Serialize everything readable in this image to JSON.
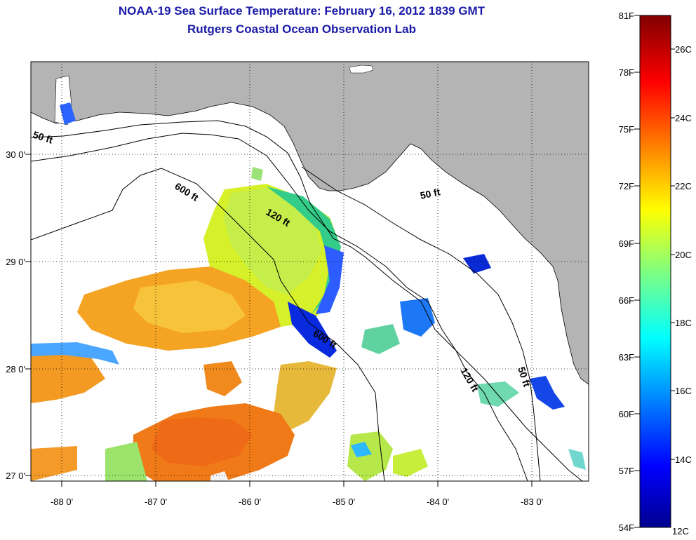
{
  "title": "NOAA-19 Sea Surface Temperature:  February 16, 2012 1839 GMT",
  "subtitle": "Rutgers Coastal Ocean Observation Lab",
  "map": {
    "lon_ticks": [
      "-88 0'",
      "-87 0'",
      "-86 0'",
      "-85 0'",
      "-84 0'",
      "-83 0'"
    ],
    "lat_ticks": [
      "30 0'",
      "29 0'",
      "28 0'",
      "27 0'"
    ],
    "contour_labels": [
      "50 ft",
      "600 ft",
      "120 ft",
      "50 ft",
      "600 ft",
      "120 ft",
      "50 ft"
    ],
    "land_color": "#b4b4b4",
    "ocean_color": "#ffffff"
  },
  "colorbar": {
    "f_labels": [
      "81F",
      "78F",
      "75F",
      "72F",
      "69F",
      "66F",
      "63F",
      "60F",
      "57F",
      "54F"
    ],
    "c_labels": [
      "26C",
      "24C",
      "22C",
      "20C",
      "18C",
      "16C",
      "14C",
      "12C"
    ]
  }
}
